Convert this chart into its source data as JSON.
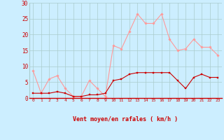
{
  "hours": [
    0,
    1,
    2,
    3,
    4,
    5,
    6,
    7,
    8,
    9,
    10,
    11,
    12,
    13,
    14,
    15,
    16,
    17,
    18,
    19,
    20,
    21,
    22,
    23
  ],
  "wind_avg": [
    1.5,
    1.5,
    1.5,
    2.0,
    1.5,
    0.5,
    0.5,
    1.0,
    1.0,
    1.5,
    5.5,
    6.0,
    7.5,
    8.0,
    8.0,
    8.0,
    8.0,
    8.0,
    5.5,
    3.0,
    6.5,
    7.5,
    6.5,
    6.5
  ],
  "wind_gust": [
    8.5,
    1.5,
    6.0,
    7.0,
    3.0,
    0.5,
    0.5,
    5.5,
    3.0,
    0.5,
    16.5,
    15.5,
    21.0,
    26.5,
    23.5,
    23.5,
    26.5,
    18.5,
    15.0,
    15.5,
    18.5,
    16.0,
    16.0,
    13.5
  ],
  "avg_color": "#cc0000",
  "gust_color": "#ff9999",
  "bg_color": "#cceeff",
  "grid_color": "#aacccc",
  "tick_color": "#cc0000",
  "xlabel": "Vent moyen/en rafales ( km/h )",
  "ylim": [
    0,
    30
  ],
  "yticks": [
    0,
    5,
    10,
    15,
    20,
    25,
    30
  ],
  "xlim": [
    -0.5,
    23.5
  ]
}
